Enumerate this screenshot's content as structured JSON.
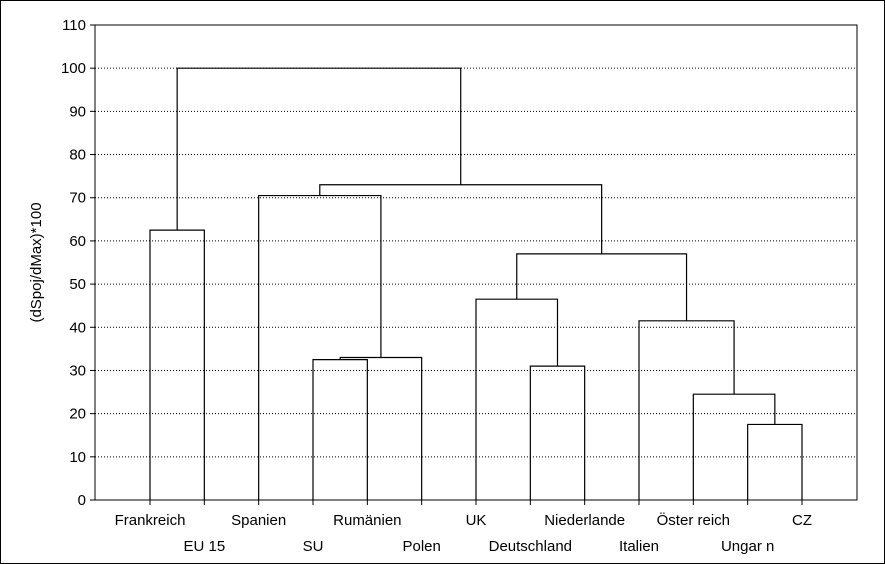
{
  "chart_data": {
    "type": "dendrogram",
    "title": "",
    "xlabel": "",
    "ylabel": "(dSpoj/dMax)*100",
    "ylim": [
      0,
      110
    ],
    "ytick_step": 10,
    "grid": true,
    "leaves": [
      "Frankreich",
      "EU 15",
      "Spanien",
      "SU",
      "Rumänien",
      "Polen",
      "UK",
      "Deutschland",
      "Niederlande",
      "Italien",
      "Österreich",
      "Ungarn",
      "CZ"
    ],
    "leaf_labels_display": [
      "Frankreich",
      "EU 15",
      "Spanien",
      "SU",
      "Rumänien",
      "Polen",
      "UK",
      "Deutschland",
      "Niederlande",
      "Italien",
      "Öster reich",
      "Ungar n",
      "CZ"
    ],
    "merges": [
      {
        "id": "m1",
        "left": "Ungarn",
        "right": "CZ",
        "height": 17.5
      },
      {
        "id": "m2",
        "left": "Österreich",
        "right": "m1",
        "height": 24.5
      },
      {
        "id": "m3",
        "left": "Deutschland",
        "right": "Niederlande",
        "height": 31
      },
      {
        "id": "m4",
        "left": "SU",
        "right": "Rumänien",
        "height": 32.5
      },
      {
        "id": "m5",
        "left": "m4",
        "right": "Polen",
        "height": 33
      },
      {
        "id": "m6",
        "left": "Italien",
        "right": "m2",
        "height": 41.5
      },
      {
        "id": "m7",
        "left": "UK",
        "right": "m3",
        "height": 46.5
      },
      {
        "id": "m8",
        "left": "m7",
        "right": "m6",
        "height": 57
      },
      {
        "id": "m9",
        "left": "Frankreich",
        "right": "EU 15",
        "height": 62.5
      },
      {
        "id": "m10",
        "left": "Spanien",
        "right": "m5",
        "height": 70.5
      },
      {
        "id": "m11",
        "left": "m10",
        "right": "m8",
        "height": 73
      },
      {
        "id": "m12",
        "left": "m9",
        "right": "m11",
        "height": 100
      }
    ]
  }
}
